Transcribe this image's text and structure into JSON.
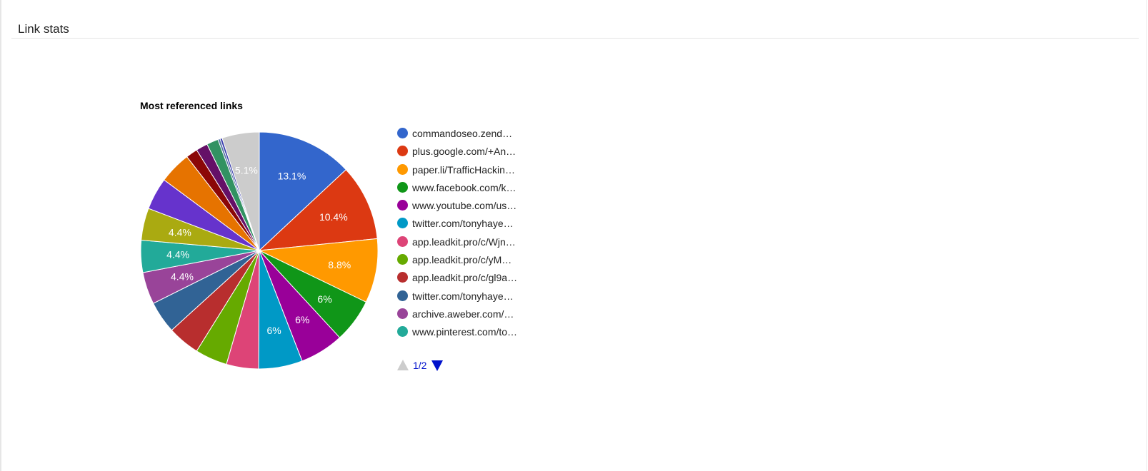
{
  "panel": {
    "title": "Link stats"
  },
  "chart_data": {
    "type": "pie",
    "title": "Most referenced links",
    "legend_position": "right",
    "series": [
      {
        "name": "commandoseo.zend…",
        "value": 13.1,
        "label": "13.1%",
        "color": "#3366cc"
      },
      {
        "name": "plus.google.com/+An…",
        "value": 10.4,
        "label": "10.4%",
        "color": "#dc3912"
      },
      {
        "name": "paper.li/TrafficHackin…",
        "value": 8.8,
        "label": "8.8%",
        "color": "#ff9900"
      },
      {
        "name": "www.facebook.com/k…",
        "value": 6.0,
        "label": "6%",
        "color": "#109618"
      },
      {
        "name": "www.youtube.com/us…",
        "value": 6.0,
        "label": "6%",
        "color": "#990099"
      },
      {
        "name": "twitter.com/tonyhaye…",
        "value": 6.0,
        "label": "6%",
        "color": "#0099c6"
      },
      {
        "name": "app.leadkit.pro/c/Wjn…",
        "value": 4.4,
        "label": "",
        "color": "#dd4477"
      },
      {
        "name": "app.leadkit.pro/c/yM…",
        "value": 4.4,
        "label": "",
        "color": "#66aa00"
      },
      {
        "name": "app.leadkit.pro/c/gl9a…",
        "value": 4.4,
        "label": "",
        "color": "#b82e2e"
      },
      {
        "name": "twitter.com/tonyhaye…",
        "value": 4.4,
        "label": "",
        "color": "#316395"
      },
      {
        "name": "archive.aweber.com/…",
        "value": 4.4,
        "label": "4.4%",
        "color": "#994499"
      },
      {
        "name": "www.pinterest.com/to…",
        "value": 4.4,
        "label": "4.4%",
        "color": "#22aa99"
      },
      {
        "value": 4.4,
        "label": "4.4%",
        "color": "#aaaa11"
      },
      {
        "value": 4.4,
        "label": "",
        "color": "#6633cc"
      },
      {
        "value": 4.4,
        "label": "",
        "color": "#e67300"
      },
      {
        "value": 1.6,
        "label": "",
        "color": "#8b0707"
      },
      {
        "value": 1.6,
        "label": "",
        "color": "#651067"
      },
      {
        "value": 1.6,
        "label": "",
        "color": "#329262"
      },
      {
        "value": 0.3,
        "label": "",
        "color": "#5574a6"
      },
      {
        "value": 0.3,
        "label": "",
        "color": "#3b3eac"
      },
      {
        "value": 5.1,
        "label": "5.1%",
        "color": "#cccccc"
      }
    ]
  },
  "legend": {
    "page_label": "1/2",
    "visible_count": 12
  }
}
